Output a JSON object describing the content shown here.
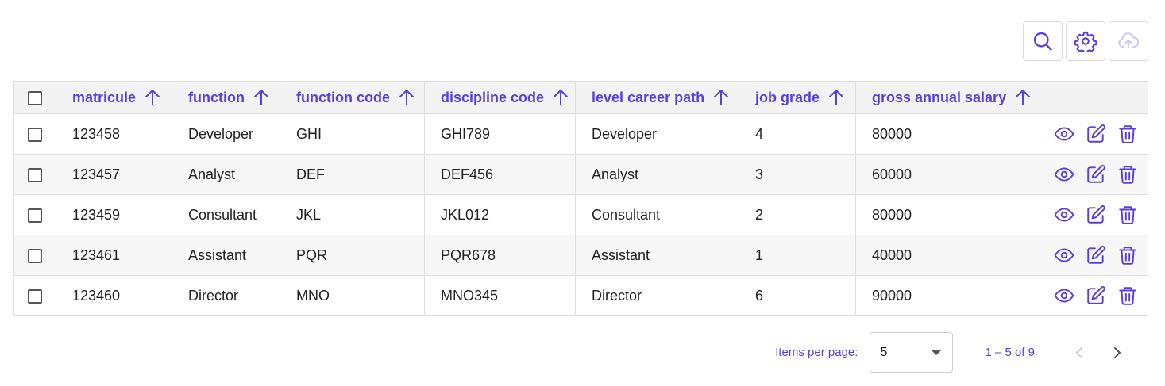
{
  "toolbar": {
    "search_icon": "search-icon",
    "settings_icon": "gear-icon",
    "upload_icon": "cloud-upload-icon"
  },
  "table": {
    "columns": [
      {
        "key": "matricule",
        "label": "matricule"
      },
      {
        "key": "function",
        "label": "function"
      },
      {
        "key": "function_code",
        "label": "function code"
      },
      {
        "key": "discipline_code",
        "label": "discipline code"
      },
      {
        "key": "level_career_path",
        "label": "level career path"
      },
      {
        "key": "job_grade",
        "label": "job grade"
      },
      {
        "key": "gross_annual_salary",
        "label": "gross annual salary"
      }
    ],
    "rows": [
      {
        "matricule": "123458",
        "function": "Developer",
        "function_code": "GHI",
        "discipline_code": "GHI789",
        "level_career_path": "Developer",
        "job_grade": "4",
        "gross_annual_salary": "80000"
      },
      {
        "matricule": "123457",
        "function": "Analyst",
        "function_code": "DEF",
        "discipline_code": "DEF456",
        "level_career_path": "Analyst",
        "job_grade": "3",
        "gross_annual_salary": "60000"
      },
      {
        "matricule": "123459",
        "function": "Consultant",
        "function_code": "JKL",
        "discipline_code": "JKL012",
        "level_career_path": "Consultant",
        "job_grade": "2",
        "gross_annual_salary": "80000"
      },
      {
        "matricule": "123461",
        "function": "Assistant",
        "function_code": "PQR",
        "discipline_code": "PQR678",
        "level_career_path": "Assistant",
        "job_grade": "1",
        "gross_annual_salary": "40000"
      },
      {
        "matricule": "123460",
        "function": "Director",
        "function_code": "MNO",
        "discipline_code": "MNO345",
        "level_career_path": "Director",
        "job_grade": "6",
        "gross_annual_salary": "90000"
      }
    ],
    "row_actions": [
      "eye-icon",
      "edit-icon",
      "trash-icon"
    ]
  },
  "pagination": {
    "items_per_page_label": "Items per page:",
    "items_per_page_value": "5",
    "range_label": "1 – 5 of 9"
  },
  "colors": {
    "accent": "#5b3fdc",
    "header_bg": "#f3f3f3",
    "border": "#dedede"
  }
}
